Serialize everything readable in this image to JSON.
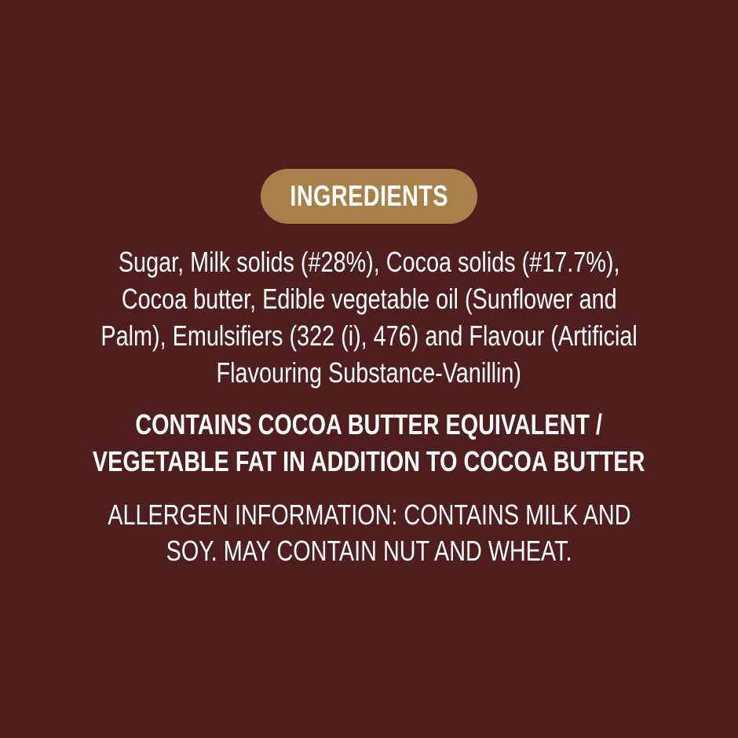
{
  "header": {
    "title": "INGREDIENTS"
  },
  "ingredients": {
    "lines": [
      "Sugar, Milk solids (#28%), Cocoa solids (#17.7%),",
      "Cocoa butter, Edible vegetable oil (Sunflower and",
      "Palm), Emulsifiers (322 (i), 476) and Flavour (Artificial",
      "Flavouring Substance-Vanillin)"
    ]
  },
  "notice": {
    "lines": [
      "CONTAINS COCOA BUTTER EQUIVALENT /",
      "VEGETABLE FAT IN ADDITION TO COCOA BUTTER"
    ]
  },
  "allergen": {
    "lines": [
      "ALLERGEN INFORMATION: CONTAINS MILK AND",
      "SOY. MAY CONTAIN NUT AND WHEAT."
    ]
  },
  "colors": {
    "background": "#4f1f20",
    "badge": "#a8814a",
    "text": "#ffffff"
  }
}
